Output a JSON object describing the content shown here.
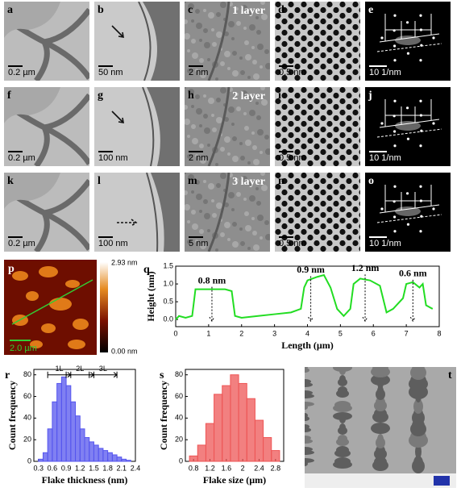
{
  "panels": [
    {
      "label": "a",
      "scale_bar": "0.2 µm"
    },
    {
      "label": "b",
      "scale_bar": "50 nm"
    },
    {
      "label": "c",
      "scale_bar": "2 nm",
      "layer": "1 layer"
    },
    {
      "label": "d",
      "scale_bar": "0.5 nm"
    },
    {
      "label": "e",
      "scale_bar": "10 1/nm"
    },
    {
      "label": "f",
      "scale_bar": "0.2 µm"
    },
    {
      "label": "g",
      "scale_bar": "100 nm"
    },
    {
      "label": "h",
      "scale_bar": "2 nm",
      "layer": "2 layer"
    },
    {
      "label": "i",
      "scale_bar": "0.5 nm"
    },
    {
      "label": "j",
      "scale_bar": "10 1/nm"
    },
    {
      "label": "k",
      "scale_bar": "0.2 µm"
    },
    {
      "label": "l",
      "scale_bar": "100 nm"
    },
    {
      "label": "m",
      "scale_bar": "5 nm",
      "layer": "3 layer"
    },
    {
      "label": "n",
      "scale_bar": "0.5 nm"
    },
    {
      "label": "o",
      "scale_bar": "10 1/nm"
    }
  ],
  "afm": {
    "label": "p",
    "scale_bar": "2.0 µm",
    "colorbar_max": "2.93 nm",
    "colorbar_min": "0.00 nm"
  },
  "sem": {
    "label": "t"
  },
  "chart_data": [
    {
      "type": "line",
      "label": "q",
      "x_label": "Length (µm)",
      "y_label": "Height (nm)",
      "color": "#22dd22",
      "x": [
        0,
        0.1,
        0.3,
        0.5,
        0.6,
        0.9,
        1.2,
        1.5,
        1.7,
        1.8,
        2.0,
        2.5,
        3.0,
        3.5,
        3.8,
        3.9,
        4.0,
        4.3,
        4.5,
        4.7,
        4.9,
        5.1,
        5.3,
        5.4,
        5.6,
        5.9,
        6.2,
        6.4,
        6.6,
        6.9,
        7.0,
        7.2,
        7.4,
        7.5,
        7.6,
        7.8
      ],
      "y": [
        0.0,
        0.1,
        0.05,
        0.1,
        0.85,
        0.85,
        0.85,
        0.85,
        0.8,
        0.1,
        0.05,
        0.1,
        0.15,
        0.2,
        0.3,
        0.9,
        1.1,
        1.2,
        1.25,
        0.9,
        0.3,
        0.1,
        0.3,
        1.0,
        1.15,
        1.1,
        0.95,
        0.2,
        0.3,
        0.6,
        1.0,
        1.05,
        0.9,
        1.0,
        0.4,
        0.3
      ],
      "xlim": [
        0,
        8
      ],
      "xticks": [
        0,
        1,
        2,
        3,
        4,
        5,
        6,
        7,
        8
      ],
      "ylim": [
        -0.2,
        1.5
      ],
      "yticks": [
        {
          "value": 0,
          "label": "0.0"
        },
        0.5,
        {
          "value": 1,
          "label": "1.0"
        },
        1.5
      ],
      "annotations": [
        "0.8 nm",
        "0.9 nm",
        "1.2 nm",
        "0.6 nm"
      ]
    },
    {
      "type": "histogram",
      "label": "r",
      "x_label": "Flake thickness (nm)",
      "y_label": "Count frequency",
      "color": "#5555ee",
      "bins": [
        0.3,
        0.4,
        0.5,
        0.6,
        0.7,
        0.8,
        0.9,
        1.0,
        1.1,
        1.2,
        1.3,
        1.4,
        1.5,
        1.6,
        1.7,
        1.8,
        1.9,
        2.0,
        2.1,
        2.2,
        2.3
      ],
      "counts": [
        2,
        8,
        30,
        55,
        72,
        78,
        70,
        55,
        42,
        30,
        22,
        18,
        15,
        12,
        10,
        8,
        6,
        4,
        2,
        1
      ],
      "xlim": [
        0.2,
        2.4
      ],
      "xticks": [
        0.3,
        0.6,
        0.9,
        1.2,
        1.5,
        1.8,
        2.1,
        2.4
      ],
      "ylim": [
        0,
        85
      ],
      "yticks": [
        0,
        20,
        40,
        60,
        80
      ],
      "annotations": [
        "1L",
        "2L",
        "3L"
      ]
    },
    {
      "type": "histogram",
      "label": "s",
      "x_label": "Flake size (µm)",
      "y_label": "Count frequency",
      "color": "#ee5555",
      "bins": [
        0.7,
        0.9,
        1.1,
        1.3,
        1.5,
        1.7,
        1.9,
        2.1,
        2.3,
        2.5,
        2.7,
        2.9
      ],
      "counts": [
        5,
        15,
        35,
        62,
        70,
        80,
        72,
        58,
        38,
        22,
        10
      ],
      "xlim": [
        0.6,
        3.0
      ],
      "xticks": [
        0.8,
        1.2,
        1.6,
        2.0,
        2.4,
        2.8
      ],
      "ylim": [
        0,
        85
      ],
      "yticks": [
        0,
        20,
        40,
        60,
        80
      ]
    }
  ]
}
